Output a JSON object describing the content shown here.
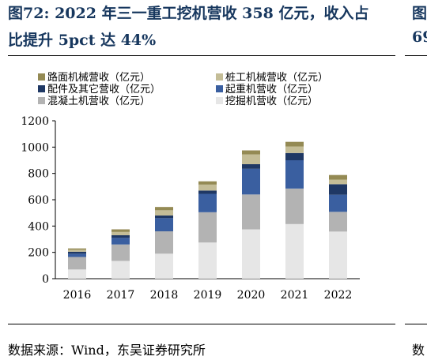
{
  "header": {
    "title_line1": "图72:  2022 年三一重工挖机营收 358 亿元，收入占",
    "title_line2": "比提升 5pct 达 44%",
    "side_cut_line1": "图",
    "side_cut_line2": "69"
  },
  "footer": {
    "source": "数据来源：Wind，东吴证券研究所",
    "side_cut": "数"
  },
  "colors": {
    "title": "#17375e",
    "road": "#948a54",
    "pile": "#c4bd97",
    "parts": "#1f3864",
    "crane": "#3a5fa0",
    "concrete": "#b3b3b3",
    "excavator": "#e6e6e6"
  },
  "chart_data": {
    "type": "bar",
    "stacked": true,
    "categories": [
      "2016",
      "2017",
      "2018",
      "2019",
      "2020",
      "2021",
      "2022"
    ],
    "ylim": [
      0,
      1200
    ],
    "yticks": [
      0,
      200,
      400,
      600,
      800,
      1000,
      1200
    ],
    "grid": false,
    "legend_position": "top",
    "series": [
      {
        "name": "挖掘机营收（亿元）",
        "color": "#e6e6e6",
        "values": [
          70,
          135,
          190,
          275,
          375,
          415,
          358
        ]
      },
      {
        "name": "混凝土机营收（亿元）",
        "color": "#b3b3b3",
        "values": [
          95,
          125,
          170,
          230,
          265,
          270,
          150
        ]
      },
      {
        "name": "起重机营收（亿元）",
        "color": "#3a5fa0",
        "values": [
          25,
          50,
          100,
          140,
          195,
          215,
          130
        ]
      },
      {
        "name": "配件及其它营收（亿元）",
        "color": "#1f3864",
        "values": [
          15,
          20,
          20,
          25,
          35,
          55,
          80
        ]
      },
      {
        "name": "桩工机械营收（亿元）",
        "color": "#c4bd97",
        "values": [
          15,
          25,
          40,
          45,
          75,
          50,
          35
        ]
      },
      {
        "name": "路面机械营收（亿元）",
        "color": "#948a54",
        "values": [
          10,
          20,
          25,
          25,
          30,
          35,
          35
        ]
      }
    ],
    "legend": [
      {
        "label": "路面机械营收（亿元）",
        "color": "#948a54"
      },
      {
        "label": "桩工机械营收（亿元）",
        "color": "#c4bd97"
      },
      {
        "label": "配件及其它营收（亿元）",
        "color": "#1f3864"
      },
      {
        "label": "起重机营收（亿元）",
        "color": "#3a5fa0"
      },
      {
        "label": "混凝土机营收（亿元）",
        "color": "#b3b3b3"
      },
      {
        "label": "挖掘机营收（亿元）",
        "color": "#e6e6e6"
      }
    ]
  }
}
